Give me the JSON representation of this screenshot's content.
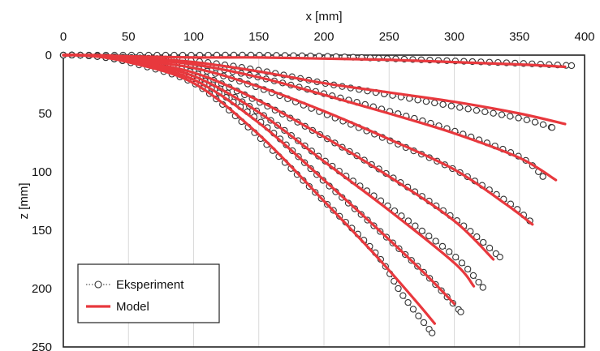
{
  "chart_data": {
    "type": "line",
    "xlabel": "x [mm]",
    "ylabel": "z [mm]",
    "x_ticks": [
      "0",
      "50",
      "100",
      "150",
      "200",
      "250",
      "300",
      "350",
      "400"
    ],
    "y_ticks": [
      "0",
      "50",
      "100",
      "150",
      "200",
      "250"
    ],
    "xlim": [
      0,
      400
    ],
    "ylim": [
      0,
      250
    ],
    "y_axis": "inverted",
    "x_axis_position": "top",
    "grid": "vertical",
    "legend": {
      "position": "bottom-left",
      "entries": [
        {
          "label": "Eksperiment",
          "style": "dotted-circle"
        },
        {
          "label": "Model",
          "style": "solid"
        }
      ]
    },
    "colors": {
      "experiment": "#333333",
      "model": "#e8383d"
    },
    "series": [
      {
        "group": "Eksperiment",
        "x": [
          0,
          12,
          25,
          50,
          100,
          150,
          200,
          250,
          300,
          350,
          390
        ],
        "y": [
          0,
          0,
          0,
          0,
          0,
          0,
          1,
          3,
          5,
          7,
          9
        ]
      },
      {
        "group": "Model",
        "x": [
          0,
          12,
          25,
          50,
          100,
          150,
          200,
          250,
          300,
          350,
          385
        ],
        "y": [
          0,
          0,
          0,
          1,
          2,
          2,
          3,
          4,
          6,
          8,
          10
        ]
      },
      {
        "group": "Eksperiment",
        "x": [
          0,
          12,
          25,
          50,
          100,
          150,
          200,
          250,
          300,
          350,
          375
        ],
        "y": [
          0,
          0,
          1,
          2,
          5,
          13,
          24,
          34,
          44,
          54,
          62
        ]
      },
      {
        "group": "Model",
        "x": [
          0,
          12,
          25,
          50,
          100,
          150,
          200,
          250,
          300,
          350,
          385
        ],
        "y": [
          0,
          0,
          1,
          2,
          6,
          14,
          24,
          32,
          40,
          50,
          59
        ]
      },
      {
        "group": "Eksperiment",
        "x": [
          0,
          12,
          25,
          50,
          100,
          150,
          200,
          250,
          300,
          350,
          368
        ],
        "y": [
          0,
          0,
          1,
          3,
          8,
          19,
          33,
          48,
          65,
          87,
          104
        ]
      },
      {
        "group": "Model",
        "x": [
          0,
          12,
          25,
          50,
          100,
          150,
          200,
          250,
          300,
          350,
          378
        ],
        "y": [
          0,
          0,
          1,
          3,
          8,
          19,
          34,
          50,
          67,
          88,
          107
        ]
      },
      {
        "group": "Eksperiment",
        "x": [
          0,
          12,
          25,
          50,
          100,
          150,
          200,
          250,
          300,
          340,
          358
        ],
        "y": [
          0,
          0,
          1,
          4,
          11,
          28,
          50,
          73,
          98,
          125,
          142
        ]
      },
      {
        "group": "Model",
        "x": [
          0,
          12,
          25,
          50,
          100,
          150,
          200,
          250,
          300,
          340,
          360
        ],
        "y": [
          0,
          0,
          1,
          4,
          11,
          27,
          48,
          72,
          98,
          128,
          145
        ]
      },
      {
        "group": "Eksperiment",
        "x": [
          0,
          12,
          25,
          50,
          100,
          150,
          200,
          250,
          300,
          335
        ],
        "y": [
          0,
          0,
          1,
          4,
          15,
          40,
          70,
          103,
          140,
          173
        ]
      },
      {
        "group": "Model",
        "x": [
          0,
          12,
          25,
          50,
          100,
          150,
          200,
          250,
          300,
          330
        ],
        "y": [
          0,
          0,
          1,
          5,
          15,
          39,
          70,
          104,
          142,
          175
        ]
      },
      {
        "group": "Eksperiment",
        "x": [
          0,
          12,
          25,
          50,
          100,
          150,
          200,
          250,
          300,
          322
        ],
        "y": [
          0,
          0,
          1,
          5,
          18,
          49,
          90,
          130,
          172,
          199
        ]
      },
      {
        "group": "Model",
        "x": [
          0,
          12,
          25,
          50,
          100,
          150,
          200,
          250,
          300,
          315
        ],
        "y": [
          0,
          0,
          1,
          5,
          18,
          49,
          91,
          133,
          178,
          198
        ]
      },
      {
        "group": "Eksperiment",
        "x": [
          0,
          12,
          25,
          50,
          100,
          150,
          200,
          250,
          280,
          305
        ],
        "y": [
          0,
          0,
          1,
          6,
          21,
          56,
          108,
          158,
          190,
          220
        ]
      },
      {
        "group": "Model",
        "x": [
          0,
          12,
          25,
          50,
          100,
          150,
          200,
          250,
          280,
          300
        ],
        "y": [
          0,
          0,
          1,
          6,
          21,
          58,
          107,
          158,
          190,
          213
        ]
      },
      {
        "group": "Eksperiment",
        "x": [
          0,
          12,
          25,
          50,
          100,
          140,
          150,
          200,
          240,
          260,
          283
        ],
        "y": [
          0,
          0,
          1,
          6,
          24,
          60,
          70,
          125,
          170,
          205,
          238
        ]
      },
      {
        "group": "Model",
        "x": [
          0,
          12,
          25,
          50,
          100,
          150,
          200,
          240,
          270,
          285
        ],
        "y": [
          0,
          0,
          1,
          6,
          24,
          68,
          125,
          172,
          210,
          230
        ]
      }
    ]
  }
}
